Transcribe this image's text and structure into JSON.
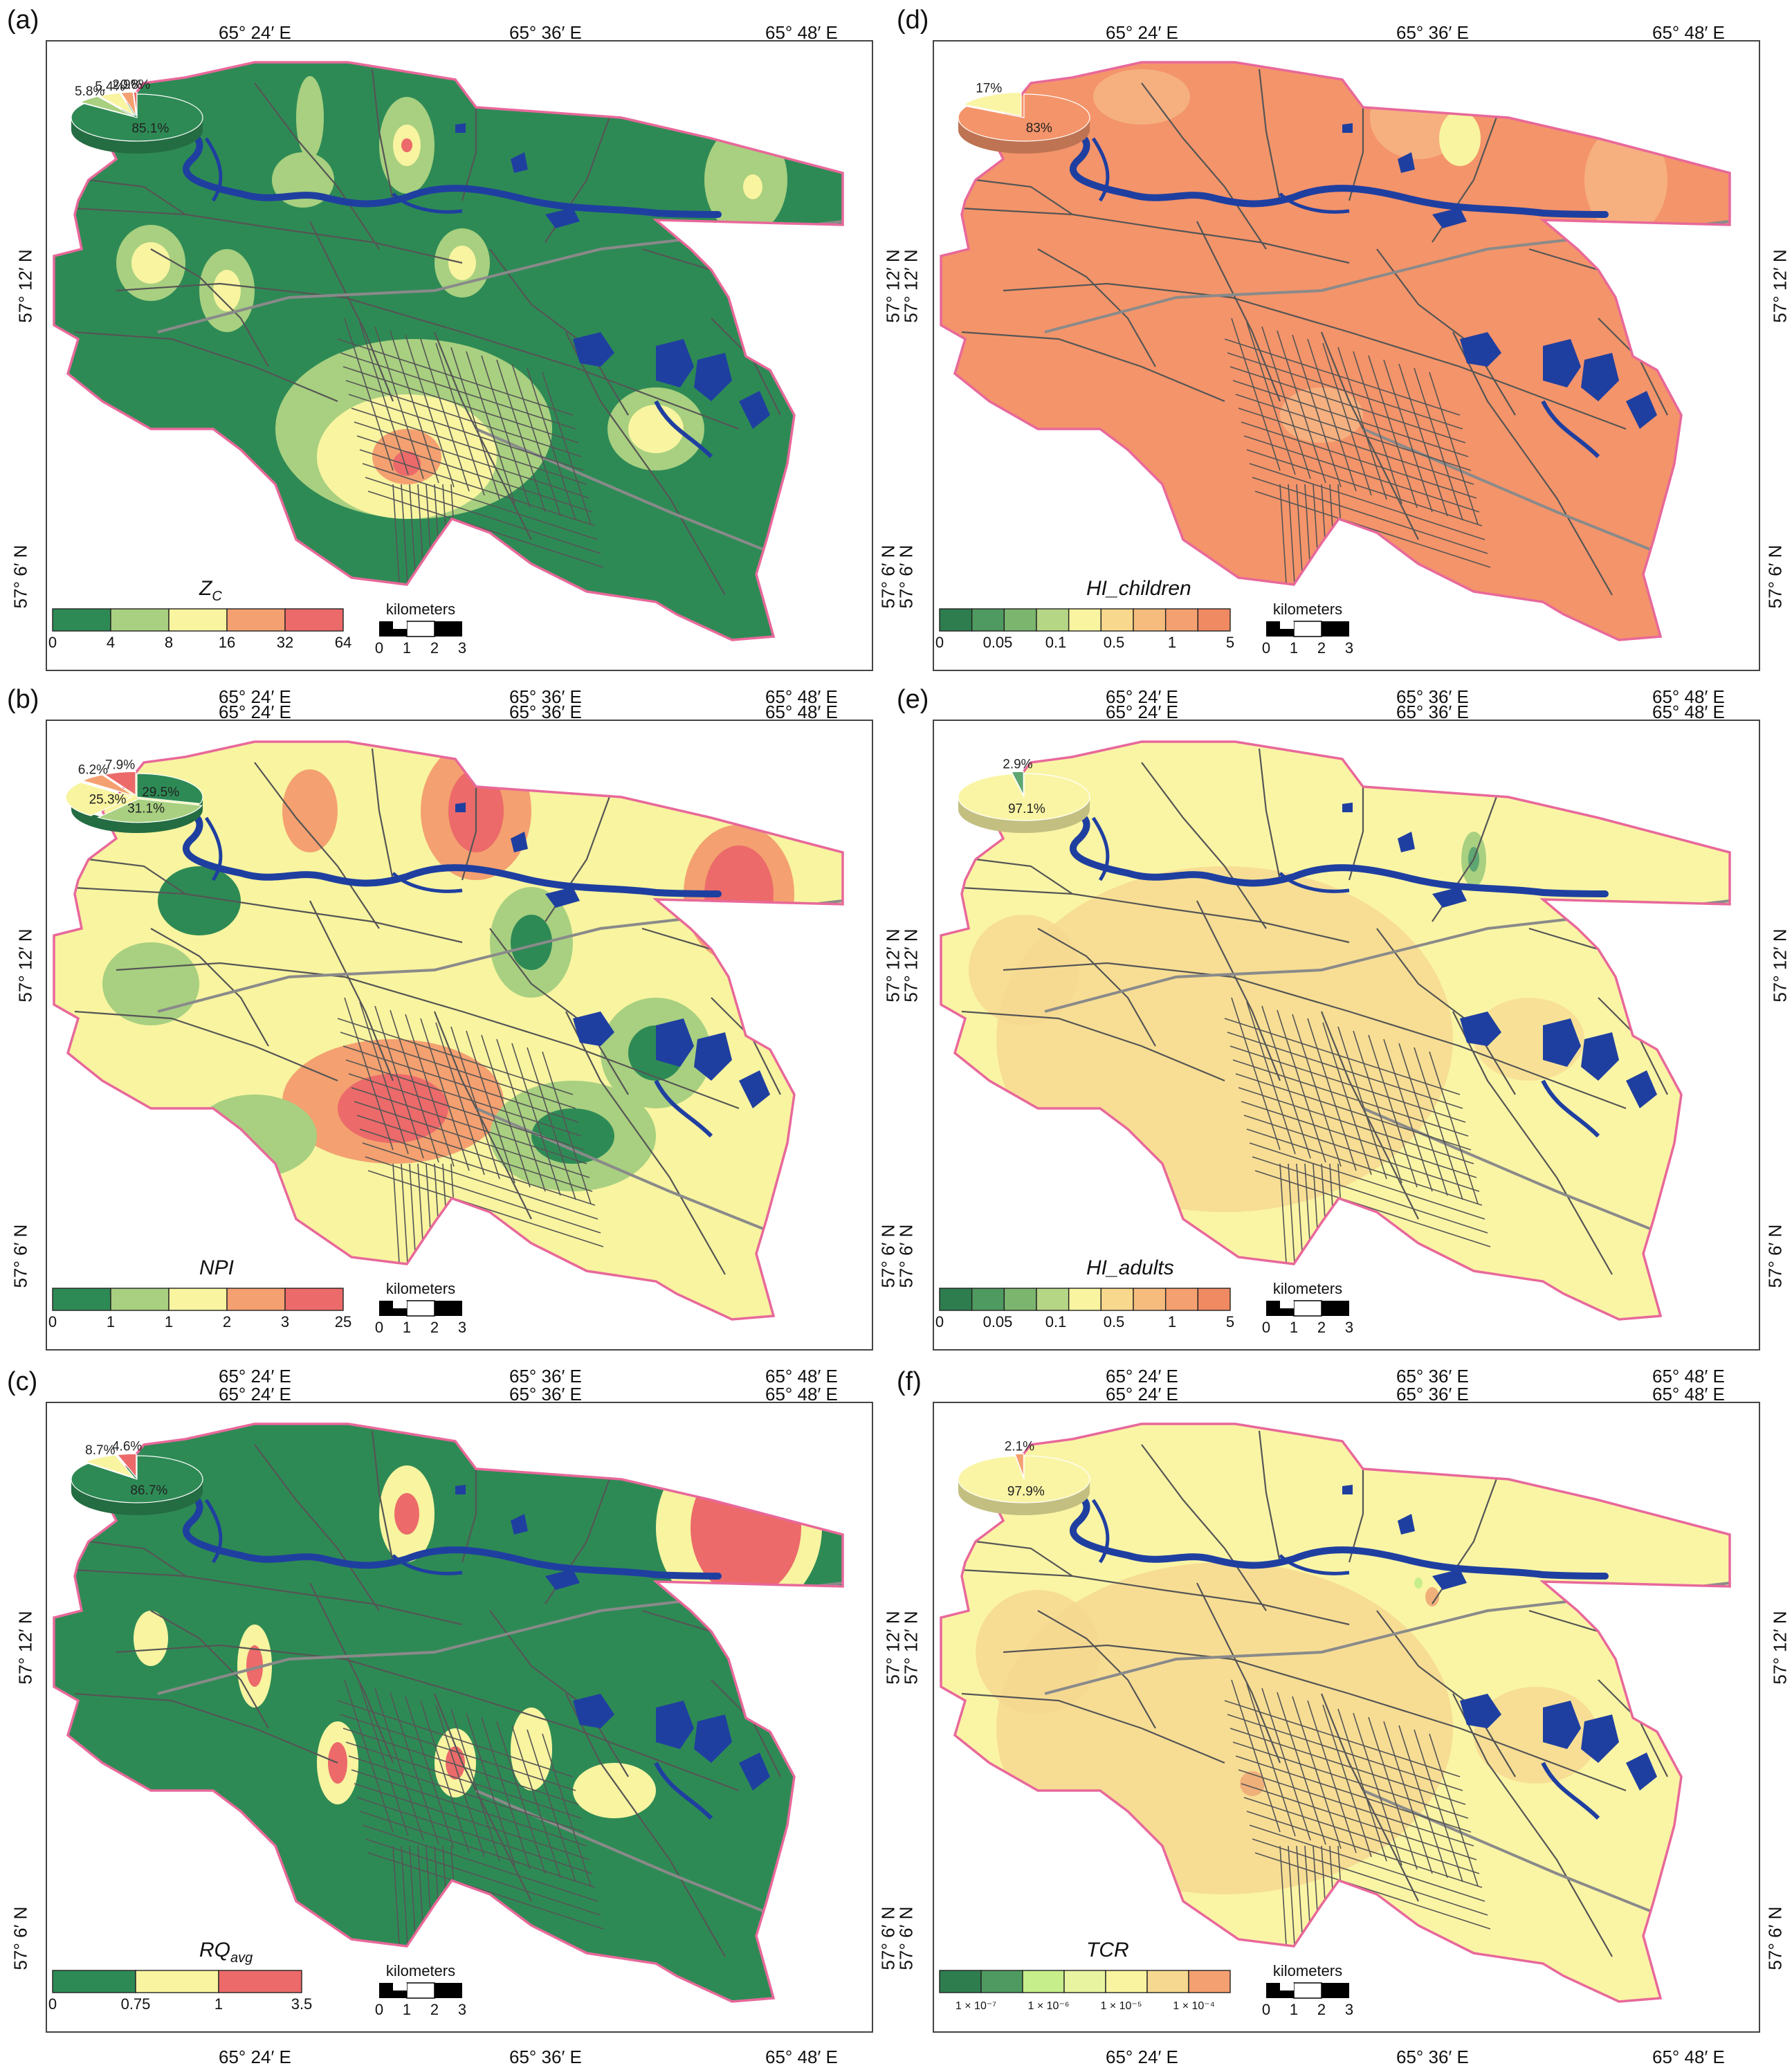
{
  "colors": {
    "boundary": "#e8689a",
    "water": "#1f3fa0",
    "roads": "#555555",
    "railway": "#8a8a8a",
    "dark_green": "#2e8a55",
    "mid_green": "#5ea672",
    "light_green": "#a8d080",
    "yellow": "#f8f4a0",
    "orange": "#f4a070",
    "red": "#ec6a6a",
    "hi_orange": "#f4946a",
    "pale_yellow": "#faf5a5",
    "tan": "#f6d890"
  },
  "common": {
    "km_label": "kilometers",
    "km_ticks": [
      "0",
      "1",
      "2",
      "3"
    ]
  },
  "panels": [
    {
      "id": "a",
      "label": "(a)",
      "top_coords": [
        "65° 24′ E",
        "65° 36′ E",
        "65° 48′ E"
      ],
      "bottom_coords": [
        "65° 24′ E",
        "65° 36′ E",
        "65° 48′ E"
      ],
      "left_coords": [
        "57° 12′ N",
        "57° 6′ N"
      ],
      "index_main": "Z",
      "index_sub": "C",
      "legend_colors": [
        "#2e8a55",
        "#a8d080",
        "#f8f4a0",
        "#f4a070",
        "#ec6a6a"
      ],
      "legend_ticks": [
        "0",
        "4",
        "8",
        "16",
        "32",
        "64"
      ],
      "pie": [
        {
          "label": "85.1%",
          "value": 85.1,
          "color": "#2e8a55"
        },
        {
          "label": "5.8%",
          "value": 5.8,
          "color": "#a8d080"
        },
        {
          "label": "5.4%",
          "value": 5.4,
          "color": "#f8f4a0"
        },
        {
          "label": "2.9%",
          "value": 2.9,
          "color": "#f4a070"
        },
        {
          "label": "0.8%",
          "value": 0.8,
          "color": "#ec6a6a"
        }
      ]
    },
    {
      "id": "b",
      "label": "(b)",
      "top_coords": [
        "65° 24′ E",
        "65° 36′ E",
        "65° 48′ E"
      ],
      "bottom_coords": [
        "65° 24′ E",
        "65° 36′ E",
        "65° 48′ E"
      ],
      "left_coords": [
        "57° 12′ N",
        "57° 6′ N"
      ],
      "index_main": "NPI",
      "index_sub": "",
      "legend_colors": [
        "#2e8a55",
        "#a8d080",
        "#f8f4a0",
        "#f4a070",
        "#ec6a6a"
      ],
      "legend_ticks": [
        "0",
        "1",
        "1",
        "2",
        "3",
        "25"
      ],
      "pie": [
        {
          "label": "29.5%",
          "value": 29.5,
          "color": "#2e8a55"
        },
        {
          "label": "31.1%",
          "value": 31.1,
          "color": "#a8d080"
        },
        {
          "label": "25.3%",
          "value": 25.3,
          "color": "#f8f4a0"
        },
        {
          "label": "6.2%",
          "value": 6.2,
          "color": "#f4a070"
        },
        {
          "label": "7.9%",
          "value": 7.9,
          "color": "#ec6a6a"
        }
      ]
    },
    {
      "id": "c",
      "label": "(c)",
      "top_coords": [
        "65° 24′ E",
        "65° 36′ E",
        "65° 48′ E"
      ],
      "bottom_coords": [
        "65° 24′ E",
        "65° 36′ E",
        "65° 48′ E"
      ],
      "left_coords": [
        "57° 12′ N",
        "57° 6′ N"
      ],
      "index_main": "RQ",
      "index_sub": "avg",
      "legend_colors": [
        "#2e8a55",
        "#f8f4a0",
        "#ec6a6a"
      ],
      "legend_ticks": [
        "0",
        "0.75",
        "1",
        "3.5"
      ],
      "pie": [
        {
          "label": "86.7%",
          "value": 86.7,
          "color": "#2e8a55"
        },
        {
          "label": "8.7%",
          "value": 8.7,
          "color": "#f8f4a0"
        },
        {
          "label": "4.6%",
          "value": 4.6,
          "color": "#ec6a6a"
        }
      ]
    },
    {
      "id": "d",
      "label": "(d)",
      "top_coords": [
        "65° 24′ E",
        "65° 36′ E",
        "65° 48′ E"
      ],
      "bottom_coords": [
        "65° 24′ E",
        "65° 36′ E",
        "65° 48′ E"
      ],
      "left_coords": [
        "57° 12′ N",
        "57° 6′ N"
      ],
      "index_main": "HI_children",
      "index_sub": "",
      "legend_colors": [
        "#2e7d4f",
        "#4f9a60",
        "#7bb56e",
        "#b5d685",
        "#f8f4a0",
        "#f8d88c",
        "#f6bc7e",
        "#f4a070",
        "#f08a62"
      ],
      "legend_ticks": [
        "0",
        "0.05",
        "0.1",
        "0.5",
        "1",
        "5"
      ],
      "pie": [
        {
          "label": "83%",
          "value": 83,
          "color": "#f4946a"
        },
        {
          "label": "17%",
          "value": 17,
          "color": "#faf5a5"
        }
      ]
    },
    {
      "id": "e",
      "label": "(e)",
      "top_coords": [
        "65° 24′ E",
        "65° 36′ E",
        "65° 48′ E"
      ],
      "bottom_coords": [
        "65° 24′ E",
        "65° 36′ E",
        "65° 48′ E"
      ],
      "left_coords": [
        "57° 12′ N",
        "57° 6′ N"
      ],
      "index_main": "HI_adults",
      "index_sub": "",
      "legend_colors": [
        "#2e7d4f",
        "#4f9a60",
        "#7bb56e",
        "#b5d685",
        "#f8f4a0",
        "#f8d88c",
        "#f6bc7e",
        "#f4a070",
        "#f08a62"
      ],
      "legend_ticks": [
        "0",
        "0.05",
        "0.1",
        "0.5",
        "1",
        "5"
      ],
      "pie": [
        {
          "label": "97.1%",
          "value": 97.1,
          "color": "#faf5a5"
        },
        {
          "label": "2.9%",
          "value": 2.9,
          "color": "#5ea672"
        }
      ]
    },
    {
      "id": "f",
      "label": "(f)",
      "top_coords": [
        "65° 24′ E",
        "65° 36′ E",
        "65° 48′ E"
      ],
      "bottom_coords": [
        "65° 24′ E",
        "65° 36′ E",
        "65° 48′ E"
      ],
      "left_coords": [
        "57° 12′ N",
        "57° 6′ N"
      ],
      "index_main": "TCR",
      "index_sub": "",
      "legend_colors": [
        "#2e7d4f",
        "#4f9a60",
        "#c6ee8a",
        "#e8f4a0",
        "#f8f4a0",
        "#f6d890",
        "#f4a070"
      ],
      "legend_ticks": [
        "1 × 10⁻⁷",
        "1 × 10⁻⁶",
        "1 × 10⁻⁵",
        "1 × 10⁻⁴"
      ],
      "pie": [
        {
          "label": "97.9%",
          "value": 97.9,
          "color": "#faf5a5"
        },
        {
          "label": "2.1%",
          "value": 2.1,
          "color": "#f4a070"
        }
      ]
    }
  ]
}
